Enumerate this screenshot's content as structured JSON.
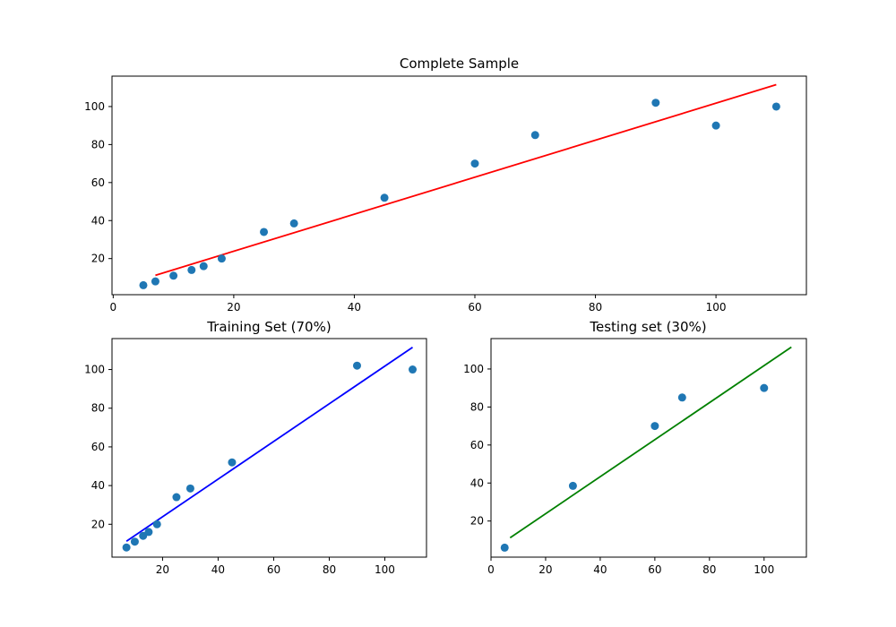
{
  "chart_data": [
    {
      "type": "scatter",
      "title": "Complete Sample",
      "xlabel": "",
      "ylabel": "",
      "xlim": [
        -0.2,
        115
      ],
      "ylim": [
        1,
        116
      ],
      "xticks": [
        0,
        20,
        40,
        60,
        80,
        100
      ],
      "yticks": [
        20,
        40,
        60,
        80,
        100
      ],
      "grid": false,
      "series": [
        {
          "kind": "scatter",
          "color": "#1f77b4",
          "x": [
            5,
            7,
            10,
            13,
            15,
            18,
            25,
            30,
            45,
            60,
            70,
            90,
            100,
            110
          ],
          "y": [
            6,
            8,
            11,
            14,
            16,
            20,
            34,
            38.5,
            52,
            70,
            85,
            102,
            90,
            100
          ]
        },
        {
          "kind": "line",
          "color": "#ff0000",
          "x": [
            7,
            110
          ],
          "y": [
            11.2,
            111.5
          ]
        }
      ]
    },
    {
      "type": "scatter",
      "title": "Training Set (70%)",
      "xlabel": "",
      "ylabel": "",
      "xlim": [
        1.8,
        115
      ],
      "ylim": [
        3,
        116
      ],
      "xticks": [
        20,
        40,
        60,
        80,
        100
      ],
      "yticks": [
        20,
        40,
        60,
        80,
        100
      ],
      "grid": false,
      "series": [
        {
          "kind": "scatter",
          "color": "#1f77b4",
          "x": [
            7,
            10,
            13,
            15,
            18,
            25,
            30,
            45,
            90,
            110
          ],
          "y": [
            8,
            11,
            14,
            16,
            20,
            34,
            38.5,
            52,
            102,
            100
          ]
        },
        {
          "kind": "line",
          "color": "#0000ff",
          "x": [
            7,
            110
          ],
          "y": [
            11.2,
            111.5
          ]
        }
      ]
    },
    {
      "type": "scatter",
      "title": "Testing set (30%)",
      "xlabel": "",
      "ylabel": "",
      "xlim": [
        0,
        115.5
      ],
      "ylim": [
        1,
        116
      ],
      "xticks": [
        0,
        20,
        40,
        60,
        80,
        100
      ],
      "yticks": [
        20,
        40,
        60,
        80,
        100
      ],
      "grid": false,
      "series": [
        {
          "kind": "scatter",
          "color": "#1f77b4",
          "x": [
            5,
            30,
            60,
            70,
            100
          ],
          "y": [
            6,
            38.5,
            70,
            85,
            90
          ]
        },
        {
          "kind": "line",
          "color": "#008000",
          "x": [
            7,
            110
          ],
          "y": [
            11.2,
            111.5
          ]
        }
      ]
    }
  ]
}
